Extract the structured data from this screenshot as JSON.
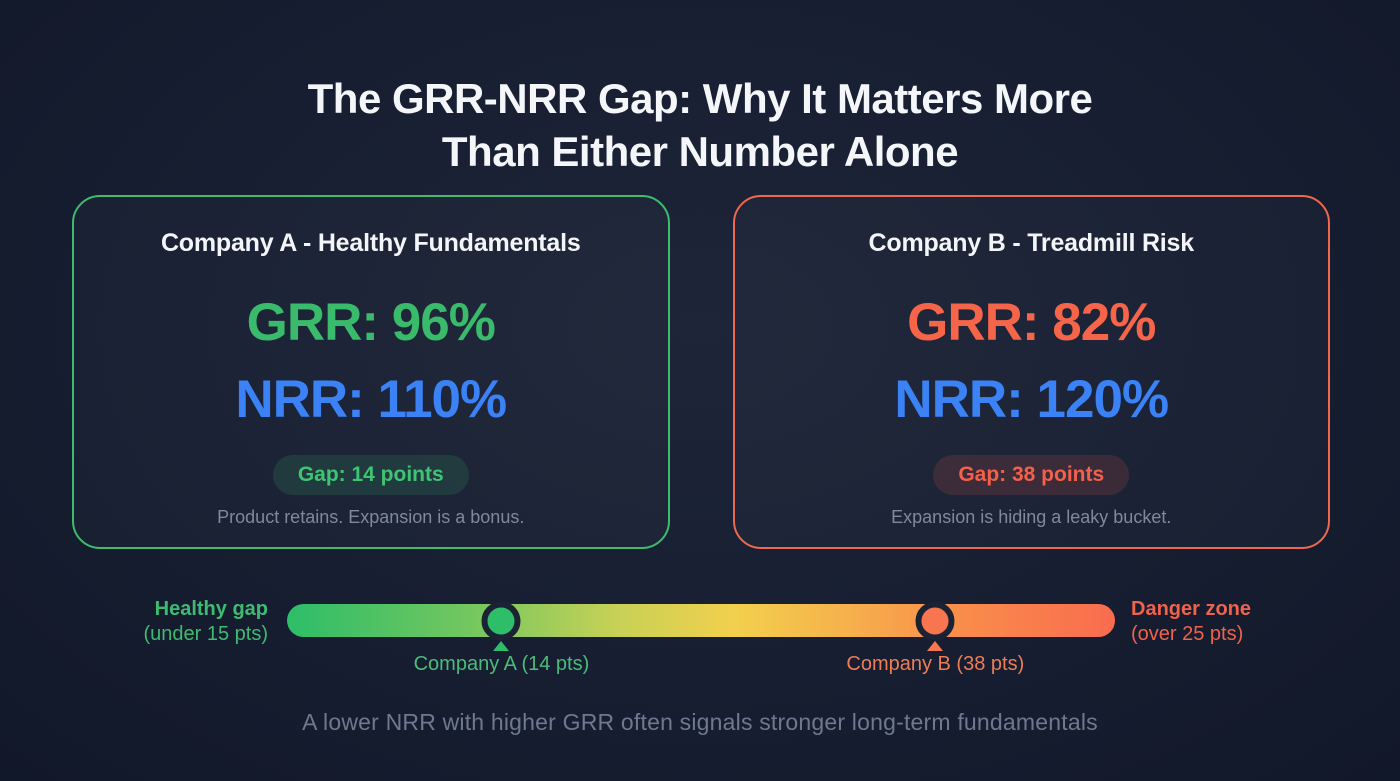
{
  "title": {
    "line1": "The GRR-NRR Gap: Why It Matters More",
    "line2": "Than Either Number Alone"
  },
  "cards": [
    {
      "title": "Company A - Healthy Fundamentals",
      "grr_text": "GRR: 96%",
      "nrr_text": "NRR: 110%",
      "gap_badge": "Gap: 14 points",
      "caption": "Product retains. Expansion is a bonus.",
      "accent_color": "#3cbc6c"
    },
    {
      "title": "Company B - Treadmill Risk",
      "grr_text": "GRR: 82%",
      "nrr_text": "NRR: 120%",
      "gap_badge": "Gap: 38 points",
      "caption": "Expansion is hiding a leaky bucket.",
      "accent_color": "#ef674c"
    }
  ],
  "scale": {
    "left_label_bold": "Healthy gap",
    "left_label_sub": "(under 15 pts)",
    "right_label_bold": "Danger zone",
    "right_label_sub": "(over 25 pts)",
    "markers": [
      {
        "label": "Company A (14 pts)",
        "points": 14,
        "position_pct": 25.9,
        "color": "#2ebd68"
      },
      {
        "label": "Company B (38 pts)",
        "points": 38,
        "position_pct": 78.3,
        "color": "#f8764f"
      }
    ],
    "gradient": [
      "#2dbd69",
      "#f2d04d",
      "#f96c4e"
    ]
  },
  "footer": "A lower NRR with higher GRR often signals stronger long-term fundamentals",
  "colors": {
    "background": "#171e31",
    "title_text": "#f4f6f9",
    "accent_green": "#3abb6b",
    "accent_blue": "#3b82f6",
    "accent_coral": "#f6654a",
    "caption_gray": "#7f889d",
    "footer_gray": "#6e7990"
  }
}
